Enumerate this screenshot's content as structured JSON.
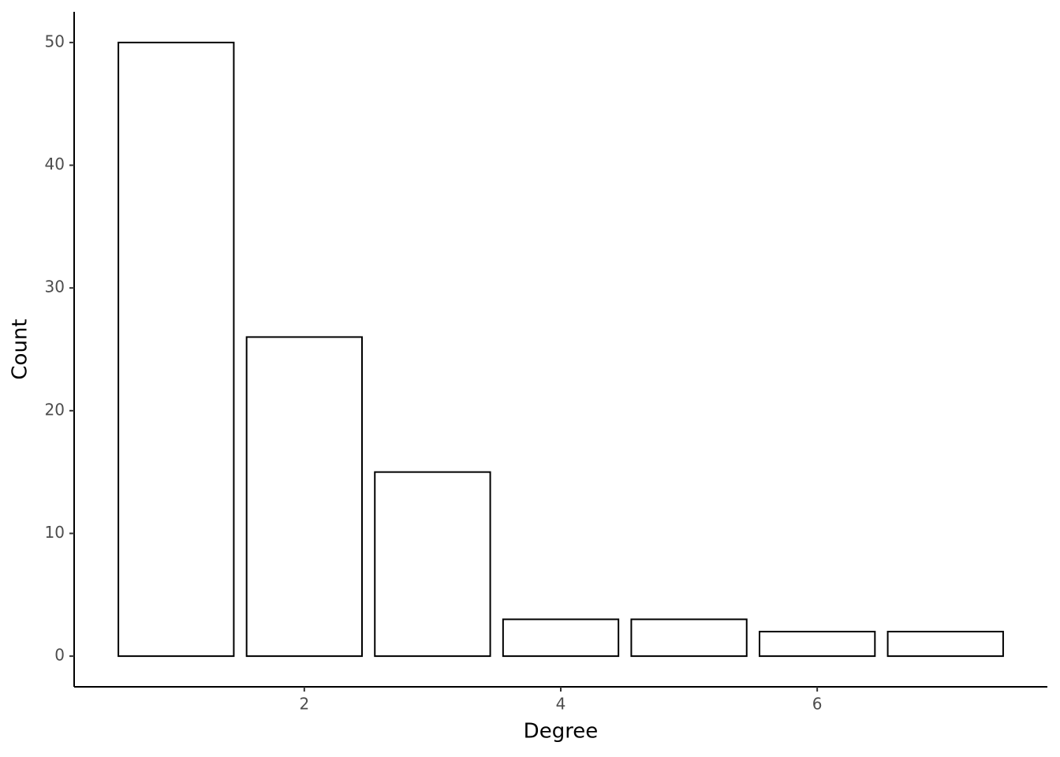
{
  "chart_data": {
    "type": "bar",
    "x_label": "Degree",
    "y_label": "Count",
    "x": [
      1,
      2,
      3,
      4,
      5,
      6,
      7
    ],
    "values": [
      50,
      26,
      15,
      3,
      3,
      2,
      2
    ],
    "color": "#ffffff",
    "edge_color": "#000000",
    "xlim": [
      0.205,
      7.795
    ],
    "xticks": [
      2,
      4,
      6
    ],
    "ylim": [
      -2.5,
      52.5
    ],
    "yticks": [
      0,
      10,
      20,
      30,
      40,
      50
    ],
    "grid": false
  }
}
